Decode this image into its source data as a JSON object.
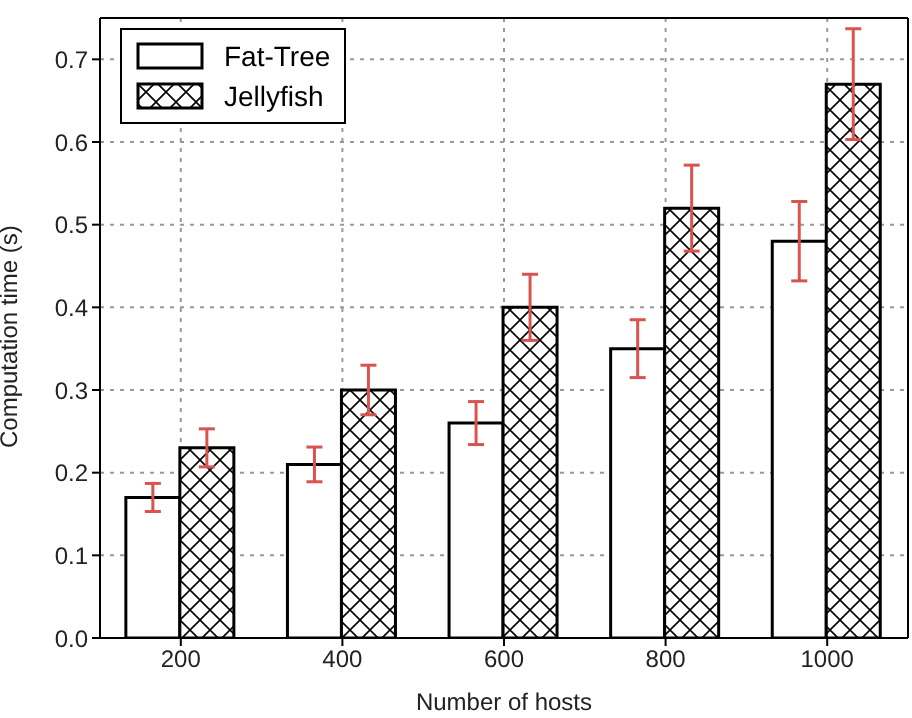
{
  "chart_data": {
    "type": "bar",
    "xlabel": "Number of hosts",
    "ylabel": "Computation time (s)",
    "categories": [
      "200",
      "400",
      "600",
      "800",
      "1000"
    ],
    "series": [
      {
        "name": "Fat-Tree",
        "color": "#ffffff",
        "values": [
          0.17,
          0.21,
          0.26,
          0.35,
          0.48
        ],
        "errors": [
          0.017,
          0.021,
          0.026,
          0.035,
          0.048
        ]
      },
      {
        "name": "Jellyfish",
        "color": "#000000",
        "values": [
          0.23,
          0.3,
          0.4,
          0.52,
          0.67
        ],
        "errors": [
          0.023,
          0.03,
          0.04,
          0.052,
          0.067
        ]
      }
    ],
    "ylim": [
      0,
      0.75
    ],
    "yticks": [
      {
        "value": 0,
        "label": "0.0"
      },
      {
        "value": 0.1,
        "label": "0.1"
      },
      {
        "value": 0.2,
        "label": "0.2"
      },
      {
        "value": 0.3,
        "label": "0.3"
      },
      {
        "value": 0.4,
        "label": "0.4"
      },
      {
        "value": 0.5,
        "label": "0.5"
      },
      {
        "value": 0.6,
        "label": "0.6"
      },
      {
        "value": 0.7,
        "label": "0.7"
      }
    ],
    "grid": true,
    "legend": "top left"
  }
}
